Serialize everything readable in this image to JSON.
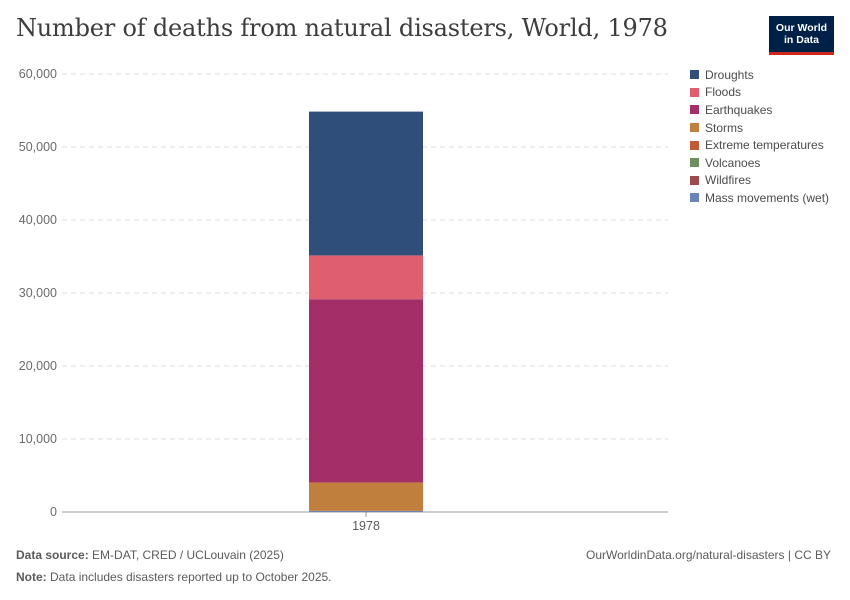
{
  "title": "Number of deaths from natural disasters, World, 1978",
  "logo": {
    "line1": "Our World",
    "line2": "in Data"
  },
  "chart_data": {
    "type": "bar",
    "stacked": true,
    "categories": [
      "1978"
    ],
    "ylim": [
      0,
      60000
    ],
    "yticks": [
      0,
      10000,
      20000,
      30000,
      40000,
      50000,
      60000
    ],
    "ytick_labels": [
      "0",
      "10,000",
      "20,000",
      "30,000",
      "40,000",
      "50,000",
      "60,000"
    ],
    "grid": true,
    "legend_position": "right",
    "series": [
      {
        "name": "Droughts",
        "values": [
          19700
        ],
        "color": "#2f4f7a"
      },
      {
        "name": "Floods",
        "values": [
          6000
        ],
        "color": "#e05f6e"
      },
      {
        "name": "Earthquakes",
        "values": [
          25100
        ],
        "color": "#a32e68"
      },
      {
        "name": "Storms",
        "values": [
          3900
        ],
        "color": "#c17f3e"
      },
      {
        "name": "Extreme temperatures",
        "values": [
          0
        ],
        "color": "#c15b37"
      },
      {
        "name": "Volcanoes",
        "values": [
          0
        ],
        "color": "#6d8f5f"
      },
      {
        "name": "Wildfires",
        "values": [
          0
        ],
        "color": "#9e4b4f"
      },
      {
        "name": "Mass movements (wet)",
        "values": [
          150
        ],
        "color": "#6a84b8"
      }
    ]
  },
  "footer": {
    "source_label": "Data source:",
    "source_text": "EM-DAT, CRED / UCLouvain (2025)",
    "note_label": "Note:",
    "note_text": "Data includes disasters reported up to October 2025.",
    "url": "OurWorldinData.org/natural-disasters | CC BY"
  }
}
